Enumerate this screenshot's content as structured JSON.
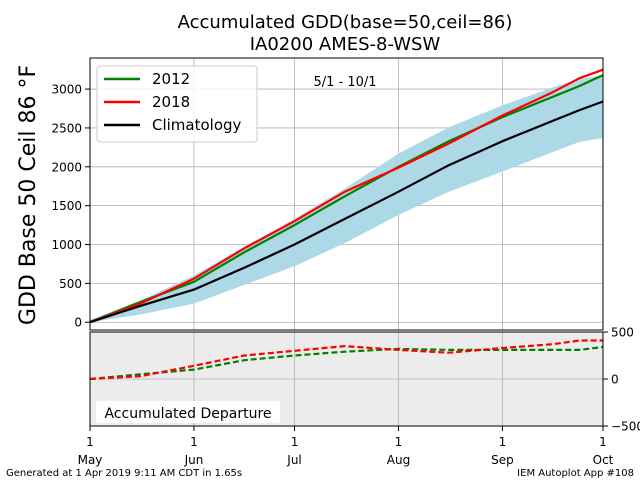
{
  "title": {
    "line1": "Accumulated GDD(base=50,ceil=86)",
    "line2": "IA0200 AMES-8-WSW"
  },
  "footer": {
    "left": "Generated at 1 Apr 2019 9:11 AM CDT in 1.65s",
    "right": "IEM Autoplot App #108"
  },
  "colors": {
    "series_2012": "#008000",
    "series_2018": "#ff0000",
    "climatology": "#000000",
    "band": "#add8e6",
    "departure_bg": "#ececec",
    "grid": "#b0b0b0"
  },
  "chart_data": [
    {
      "type": "line",
      "ylabel": "GDD Base 50 Ceil 86 °F",
      "annotation": "5/1 - 10/1",
      "ylim": [
        -100,
        3400
      ],
      "yticks": [
        0,
        500,
        1000,
        1500,
        2000,
        2500,
        3000
      ],
      "grid": true,
      "legend_position": "top-left",
      "x": [
        "May 1",
        "May 16",
        "Jun 1",
        "Jun 16",
        "Jul 1",
        "Jul 16",
        "Aug 1",
        "Aug 16",
        "Sep 1",
        "Sep 16",
        "Sep 24",
        "Oct 1"
      ],
      "x_days": [
        0,
        15,
        31,
        46,
        61,
        76,
        92,
        107,
        123,
        138,
        146,
        153
      ],
      "x_ticks": [
        {
          "day": 0,
          "label": "1",
          "month": "May"
        },
        {
          "day": 31,
          "label": "1",
          "month": "Jun"
        },
        {
          "day": 61,
          "label": "1",
          "month": "Jul"
        },
        {
          "day": 92,
          "label": "1",
          "month": "Aug"
        },
        {
          "day": 123,
          "label": "1",
          "month": "Sep"
        },
        {
          "day": 153,
          "label": "1",
          "month": "Oct"
        }
      ],
      "series": [
        {
          "name": "2012",
          "values": [
            0,
            260,
            520,
            900,
            1250,
            1620,
            2000,
            2330,
            2640,
            2900,
            3040,
            3180
          ]
        },
        {
          "name": "2018",
          "values": [
            0,
            240,
            560,
            950,
            1300,
            1680,
            1990,
            2300,
            2660,
            2960,
            3140,
            3250
          ]
        },
        {
          "name": "Climatology",
          "values": [
            0,
            210,
            420,
            700,
            1000,
            1330,
            1680,
            2020,
            2330,
            2590,
            2730,
            2840
          ]
        }
      ],
      "band": {
        "lower": [
          0,
          100,
          240,
          480,
          720,
          1020,
          1380,
          1680,
          1940,
          2190,
          2320,
          2370
        ],
        "upper": [
          30,
          280,
          600,
          970,
          1330,
          1720,
          2170,
          2510,
          2790,
          3020,
          3130,
          3180
        ]
      }
    },
    {
      "type": "line",
      "annotation": "Accumulated Departure",
      "ylim": [
        -500,
        500
      ],
      "yticks": [
        -500,
        0,
        500
      ],
      "grid": true,
      "x_days": [
        0,
        15,
        31,
        46,
        61,
        76,
        92,
        107,
        123,
        138,
        146,
        153
      ],
      "series": [
        {
          "name": "2012",
          "values": [
            0,
            50,
            100,
            200,
            250,
            290,
            320,
            310,
            310,
            310,
            310,
            340
          ]
        },
        {
          "name": "2018",
          "values": [
            0,
            30,
            140,
            250,
            300,
            350,
            310,
            280,
            330,
            370,
            410,
            410
          ]
        }
      ]
    }
  ]
}
